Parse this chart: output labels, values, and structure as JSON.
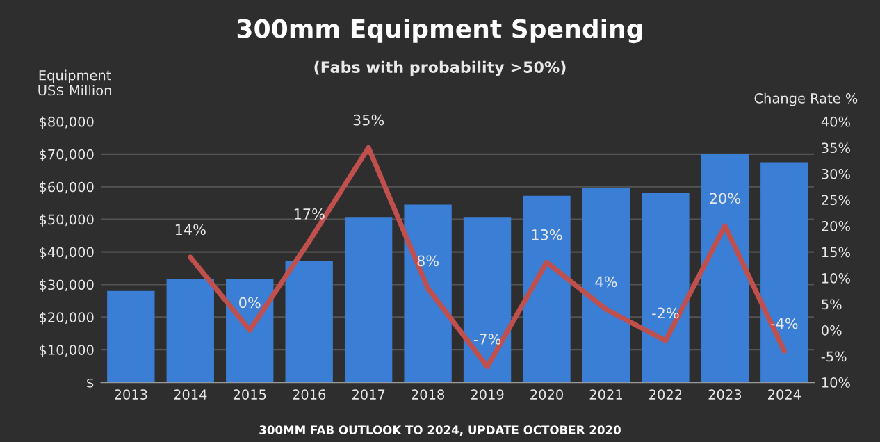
{
  "chart_data": {
    "type": "bar",
    "title": "300mm Equipment Spending",
    "subtitle": "(Fabs with probability >50%)",
    "ylabel": "Equipment\nUS$ Million",
    "y2label": "Change Rate %",
    "categories": [
      "2013",
      "2014",
      "2015",
      "2016",
      "2017",
      "2018",
      "2019",
      "2020",
      "2021",
      "2022",
      "2023",
      "2024"
    ],
    "series": [
      {
        "color": "#3a7fd5",
        "values": [
          28000,
          31700,
          31700,
          37200,
          50700,
          54500,
          50700,
          57200,
          59700,
          58200,
          70000,
          67500
        ]
      },
      {
        "type": "line",
        "axis": "y2",
        "color": "#c0504d",
        "line_style": "solid",
        "marker": "none",
        "values": [
          null,
          14,
          0,
          17,
          35,
          8,
          -7,
          13,
          4,
          -2,
          20,
          -4
        ],
        "value_labels": [
          null,
          "14%",
          "0%",
          "17%",
          "35%",
          "8%",
          "-7%",
          "13%",
          "4%",
          "-2%",
          "20%",
          "-4%"
        ]
      }
    ],
    "ylim": [
      0,
      80000
    ],
    "yticks": [
      {
        "value": 0,
        "label": "$"
      },
      {
        "value": 10000,
        "label": "$10,000"
      },
      {
        "value": 20000,
        "label": "$20,000"
      },
      {
        "value": 30000,
        "label": "$30,000"
      },
      {
        "value": 40000,
        "label": "$40,000"
      },
      {
        "value": 50000,
        "label": "$50,000"
      },
      {
        "value": 60000,
        "label": "$60,000"
      },
      {
        "value": 70000,
        "label": "$70,000"
      },
      {
        "value": 80000,
        "label": "$80,000"
      }
    ],
    "y2lim": [
      -10,
      40
    ],
    "y2ticks": [
      {
        "value": -10,
        "label": "10%"
      },
      {
        "value": -5,
        "label": "-5%"
      },
      {
        "value": 0,
        "label": "0%"
      },
      {
        "value": 5,
        "label": "5%"
      },
      {
        "value": 10,
        "label": "10%"
      },
      {
        "value": 15,
        "label": "15%"
      },
      {
        "value": 20,
        "label": "20%"
      },
      {
        "value": 25,
        "label": "25%"
      },
      {
        "value": 30,
        "label": "30%"
      },
      {
        "value": 35,
        "label": "35%"
      },
      {
        "value": 40,
        "label": "40%"
      }
    ],
    "grid": "y",
    "legend": false,
    "annotations": [
      "300MM FAB OUTLOOK TO 2024, UPDATE OCTOBER 2020"
    ]
  }
}
